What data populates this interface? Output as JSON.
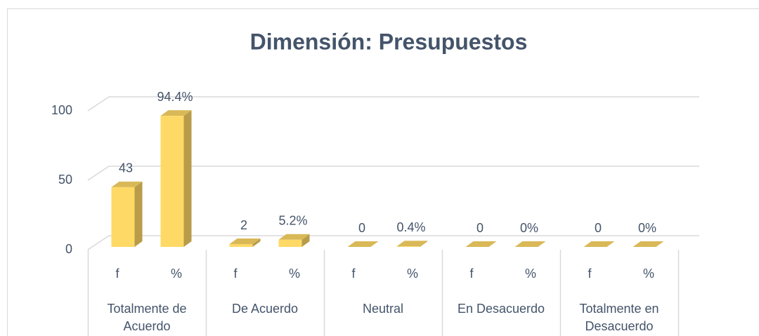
{
  "chart_data": {
    "type": "bar3d",
    "title": "Dimensión: Presupuestos",
    "categories": [
      "f",
      "%",
      "f",
      "%",
      "f",
      "%",
      "f",
      "%",
      "f",
      "%"
    ],
    "groups": [
      "Totalmente de Acuerdo",
      "De Acuerdo",
      "Neutral",
      "En Desacuerdo",
      "Totalmente en Desacuerdo"
    ],
    "values": [
      43,
      94.4,
      2,
      5.2,
      0,
      0.4,
      0,
      0,
      0,
      0
    ],
    "value_labels": [
      "43",
      "94.4%",
      "2",
      "5.2%",
      "0",
      "0.4%",
      "0",
      "0%",
      "0",
      "0%"
    ],
    "color": "#ffd966",
    "ylim": [
      0,
      100
    ],
    "yticks": [
      0,
      50,
      100
    ],
    "grid": true
  }
}
